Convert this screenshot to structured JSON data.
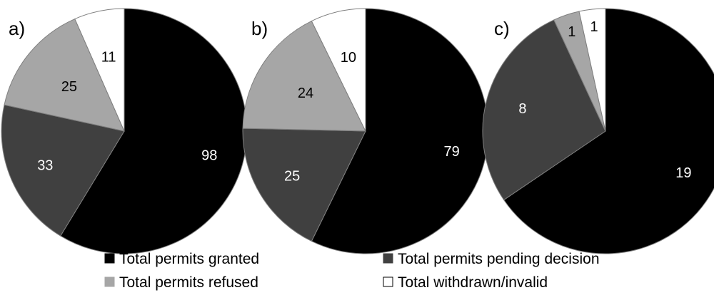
{
  "chart_data": [
    {
      "type": "pie",
      "panel_label": "a)",
      "categories": [
        "Total permits granted",
        "Total permits pending decision",
        "Total permits refused",
        "Total withdrawn/invalid"
      ],
      "values": [
        98,
        33,
        25,
        11
      ]
    },
    {
      "type": "pie",
      "panel_label": "b)",
      "categories": [
        "Total permits granted",
        "Total permits pending decision",
        "Total permits refused",
        "Total withdrawn/invalid"
      ],
      "values": [
        79,
        25,
        24,
        10
      ]
    },
    {
      "type": "pie",
      "panel_label": "c)",
      "categories": [
        "Total permits granted",
        "Total permits pending decision",
        "Total permits refused",
        "Total withdrawn/invalid"
      ],
      "values": [
        19,
        8,
        1,
        1
      ]
    }
  ],
  "legend": {
    "placement": "bottom",
    "items": [
      {
        "label": "Total permits granted",
        "color": "#000000"
      },
      {
        "label": "Total permits pending decision",
        "color": "#404040"
      },
      {
        "label": "Total permits refused",
        "color": "#a6a6a6"
      },
      {
        "label": "Total withdrawn/invalid",
        "color": "#ffffff"
      }
    ]
  },
  "colors": {
    "granted": "#000000",
    "pending": "#404040",
    "refused": "#a6a6a6",
    "withdrawn": "#ffffff",
    "outline": "#7f7f7f"
  }
}
